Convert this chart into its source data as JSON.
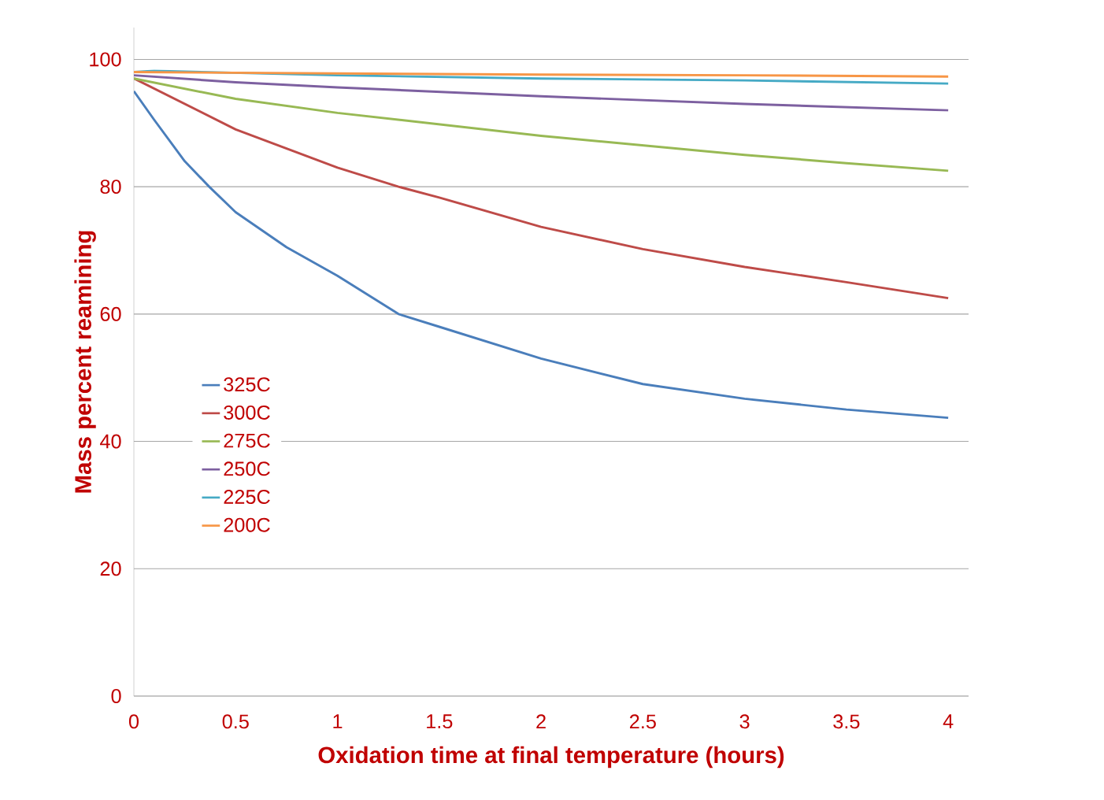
{
  "chart_data": {
    "type": "line",
    "xlabel": "Oxidation time at final temperature (hours)",
    "ylabel": "Mass percent reamining",
    "xlim": [
      0,
      4.1
    ],
    "ylim": [
      0,
      105
    ],
    "xticks": [
      0,
      0.5,
      1,
      1.5,
      2,
      2.5,
      3,
      3.5,
      4
    ],
    "yticks": [
      0,
      20,
      40,
      60,
      80,
      100
    ],
    "grid": "y",
    "legend": "left",
    "marker": "none",
    "line_style": "solid",
    "series": [
      {
        "name": "325C",
        "color": "#4a7ebb",
        "x": [
          0,
          0.1,
          0.25,
          0.37,
          0.5,
          0.75,
          1,
          1.3,
          1.5,
          2,
          2.5,
          3,
          3.5,
          4
        ],
        "values": [
          95,
          90.5,
          84,
          80,
          76,
          70.5,
          66,
          60,
          58,
          53,
          49,
          46.7,
          45,
          43.7
        ]
      },
      {
        "name": "300C",
        "color": "#be4b48",
        "x": [
          0,
          0.5,
          1,
          1.3,
          1.5,
          2,
          2.5,
          3,
          3.5,
          4
        ],
        "values": [
          97,
          89,
          83,
          80,
          78.3,
          73.7,
          70.2,
          67.4,
          65,
          62.5
        ]
      },
      {
        "name": "275C",
        "color": "#98b954",
        "x": [
          0,
          0.5,
          1,
          1.5,
          2,
          2.5,
          3,
          3.5,
          4
        ],
        "values": [
          97,
          93.8,
          91.6,
          89.8,
          88,
          86.5,
          85,
          83.7,
          82.5
        ]
      },
      {
        "name": "250C",
        "color": "#7d60a0",
        "x": [
          0,
          0.5,
          1,
          2,
          3,
          4
        ],
        "values": [
          97.5,
          96.4,
          95.6,
          94.2,
          93,
          92
        ]
      },
      {
        "name": "225C",
        "color": "#46aac5",
        "x": [
          0,
          0.1,
          1,
          2,
          3,
          4
        ],
        "values": [
          98,
          98.2,
          97.5,
          97,
          96.7,
          96.2
        ]
      },
      {
        "name": "200C",
        "color": "#f79646",
        "x": [
          0,
          1,
          2,
          3,
          4
        ],
        "values": [
          98,
          97.8,
          97.6,
          97.5,
          97.3
        ]
      }
    ]
  }
}
